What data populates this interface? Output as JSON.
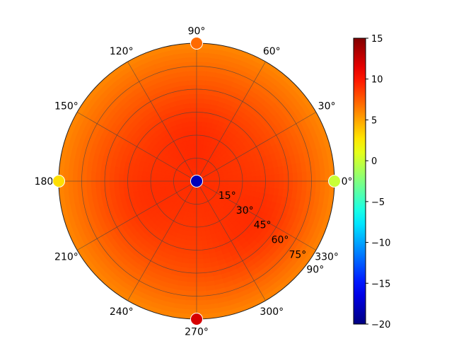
{
  "chart_data": {
    "type": "heatmap",
    "projection": "polar",
    "angle_labels": [
      "0°",
      "30°",
      "60°",
      "90°",
      "120°",
      "150°",
      "180°",
      "210°",
      "240°",
      "270°",
      "300°",
      "330°"
    ],
    "radial_labels": [
      "15°",
      "30°",
      "45°",
      "60°",
      "75°",
      "90°"
    ],
    "colorbar": {
      "colormap": "jet",
      "range": [
        -20,
        15
      ],
      "ticks": [
        15,
        10,
        5,
        0,
        -5,
        -10,
        -15,
        -20
      ],
      "tick_labels": [
        "15",
        "10",
        "5",
        "0",
        "−5",
        "−10",
        "−15",
        "−20"
      ]
    },
    "grid": true,
    "markers": [
      {
        "theta": 0,
        "r": 0,
        "value": -18
      },
      {
        "theta": 0,
        "r": 90,
        "value": 0
      },
      {
        "theta": 90,
        "r": 90,
        "value": 7
      },
      {
        "theta": 180,
        "r": 90,
        "value": 3
      },
      {
        "theta": 270,
        "r": 90,
        "value": 12
      }
    ],
    "field": {
      "center_value": 9,
      "edge_value": 6,
      "peaks": [
        {
          "theta": 95,
          "r": 35,
          "value": 9.5
        },
        {
          "theta": 200,
          "r": 45,
          "value": 9.5
        },
        {
          "theta": 325,
          "r": 55,
          "value": 10
        }
      ]
    }
  }
}
